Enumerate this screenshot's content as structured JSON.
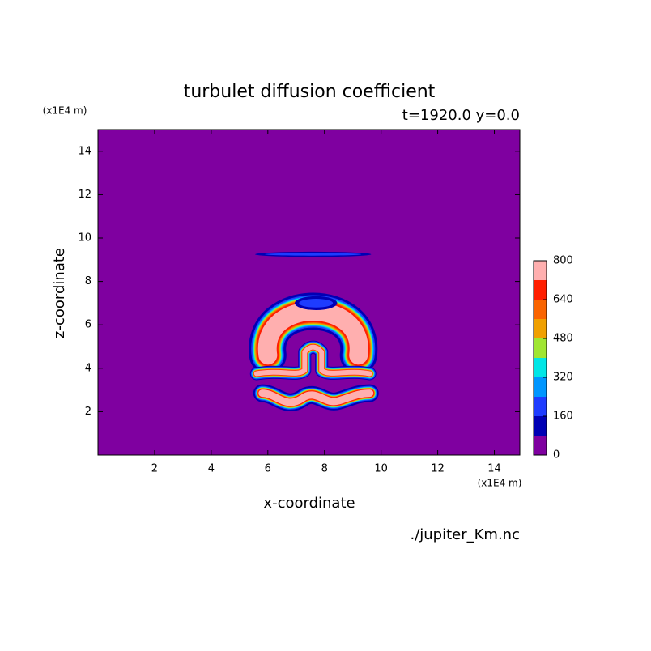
{
  "chart_data": {
    "type": "contour",
    "title": "turbulet diffusion coefficient",
    "subtitle": "t=1920.0 y=0.0",
    "x_label": "x-coordinate",
    "y_label": "z-coordinate",
    "x_unit": "(x1E4 m)",
    "y_unit": "(x1E4 m)",
    "source": "./jupiter_Km.nc",
    "xlim": [
      0,
      14.9
    ],
    "ylim": [
      0,
      15
    ],
    "xticks": [
      2,
      4,
      6,
      8,
      10,
      12,
      14
    ],
    "yticks": [
      2,
      4,
      6,
      8,
      10,
      12,
      14
    ],
    "levels": [
      0,
      80,
      160,
      240,
      320,
      400,
      480,
      560,
      640,
      720,
      800
    ],
    "colors": [
      "#7f00a0",
      "#0000b4",
      "#1e3cff",
      "#0096ff",
      "#00e6e6",
      "#a0e632",
      "#f0a000",
      "#fa6400",
      "#ff1e00",
      "#ffafaf"
    ],
    "colorbar_ticks": [
      0,
      160,
      320,
      480,
      640,
      800
    ]
  }
}
